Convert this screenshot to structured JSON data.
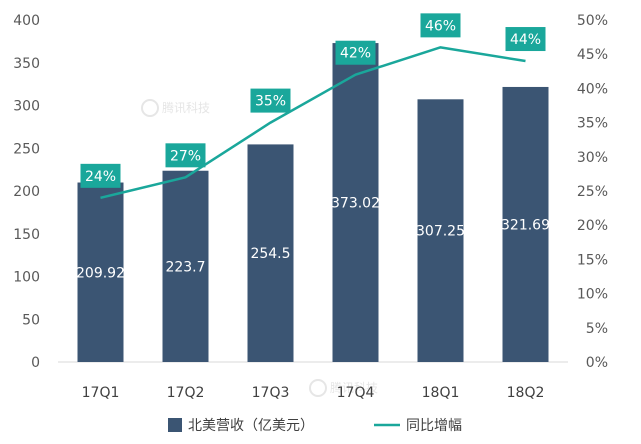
{
  "chart_data": {
    "type": "bar",
    "categories": [
      "17Q1",
      "17Q2",
      "17Q3",
      "17Q4",
      "18Q1",
      "18Q2"
    ],
    "series": [
      {
        "name": "北美营收（亿美元）",
        "type": "bar",
        "axis": "left",
        "color": "#3b5573",
        "values": [
          209.92,
          223.7,
          254.5,
          373.02,
          307.25,
          321.69
        ],
        "labels": [
          "209.92",
          "223.7",
          "254.5",
          "373.02",
          "307.25",
          "321.69"
        ]
      },
      {
        "name": "同比增幅",
        "type": "line",
        "axis": "right",
        "color": "#1aa79b",
        "values": [
          0.24,
          0.27,
          0.35,
          0.42,
          0.46,
          0.44
        ],
        "labels": [
          "24%",
          "27%",
          "35%",
          "42%",
          "46%",
          "44%"
        ]
      }
    ],
    "ylim_left": [
      0,
      400
    ],
    "yticks_left": [
      "0",
      "50",
      "100",
      "150",
      "200",
      "250",
      "300",
      "350",
      "400"
    ],
    "ylim_right": [
      0,
      0.5
    ],
    "yticks_right": [
      "0%",
      "5%",
      "10%",
      "15%",
      "20%",
      "25%",
      "30%",
      "35%",
      "40%",
      "45%",
      "50%"
    ],
    "legend_position": "bottom",
    "grid": false,
    "watermark": "腾讯科技"
  }
}
